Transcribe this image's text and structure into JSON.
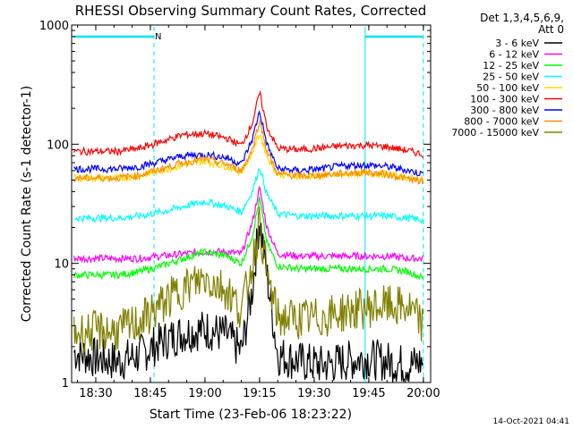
{
  "chart_data": {
    "type": "line",
    "title": "RHESSI Observing Summary Count Rates, Corrected",
    "xlabel": "Start Time (23-Feb-06 18:23:22)",
    "ylabel": "Corrected Count Rate (s-1 detector-1)",
    "y_scale": "log",
    "ylim": [
      1,
      1000
    ],
    "xlim": [
      "18:23:22",
      "20:02:00"
    ],
    "x_ticks": [
      "18:30",
      "18:45",
      "19:00",
      "19:15",
      "19:30",
      "19:45",
      "20:00"
    ],
    "y_ticks": [
      "1",
      "10",
      "100",
      "1000"
    ],
    "legend_header": [
      "Det 1,3,4,5,6,9,",
      "Att 0"
    ],
    "legend_position": "right",
    "footer_timestamp": "14-Oct-2021 04:41",
    "annotations": [
      {
        "text": "N",
        "time": "18:45",
        "note": "night marker"
      }
    ],
    "night_intervals": [
      [
        "18:23:22",
        "18:46:00"
      ],
      [
        "19:44:00",
        "20:00:00"
      ]
    ],
    "x": [
      "18:24",
      "18:30",
      "18:36",
      "18:42",
      "18:48",
      "18:54",
      "19:00",
      "19:06",
      "19:10",
      "19:13",
      "19:15",
      "19:17",
      "19:20",
      "19:26",
      "19:32",
      "19:38",
      "19:44",
      "19:50",
      "19:56",
      "20:00"
    ],
    "series": [
      {
        "name": "3 - 6 keV",
        "color": "#000000",
        "values": [
          1.8,
          1.6,
          1.5,
          1.7,
          2.2,
          2.6,
          2.8,
          2.5,
          1.8,
          6,
          24,
          8,
          1.7,
          1.5,
          1.4,
          1.5,
          1.6,
          1.5,
          1.4,
          1.5
        ]
      },
      {
        "name": "6 - 12 keV",
        "color": "#ff00ff",
        "values": [
          11,
          11,
          11,
          11,
          11.5,
          12,
          12.5,
          12.5,
          12,
          22,
          43,
          20,
          12,
          11.5,
          11.5,
          11.5,
          11.5,
          11.5,
          11,
          11
        ]
      },
      {
        "name": "12 - 25 keV",
        "color": "#00ff00",
        "values": [
          8,
          8,
          8,
          8.5,
          9.5,
          11,
          12.5,
          11.5,
          10,
          17,
          35,
          15,
          9.5,
          9,
          9,
          9,
          9,
          9,
          8.5,
          7.5
        ]
      },
      {
        "name": "25 - 50 keV",
        "color": "#00ffff",
        "values": [
          24,
          24,
          24,
          25,
          27,
          30,
          33,
          30,
          27,
          40,
          65,
          38,
          26,
          25,
          25,
          25,
          25,
          25,
          24,
          23
        ]
      },
      {
        "name": "50 - 100 keV",
        "color": "#ffd700",
        "values": [
          52,
          52,
          52,
          54,
          60,
          67,
          72,
          65,
          58,
          85,
          125,
          80,
          56,
          54,
          54,
          56,
          57,
          56,
          52,
          50
        ]
      },
      {
        "name": "100 - 300 keV",
        "color": "#ff0000",
        "values": [
          87,
          87,
          87,
          92,
          105,
          120,
          123,
          112,
          98,
          150,
          270,
          140,
          92,
          90,
          93,
          97,
          98,
          95,
          88,
          82
        ]
      },
      {
        "name": "300 - 800 keV",
        "color": "#0000ff",
        "values": [
          62,
          62,
          62,
          65,
          72,
          80,
          82,
          77,
          68,
          110,
          190,
          100,
          62,
          60,
          62,
          66,
          67,
          65,
          60,
          56
        ]
      },
      {
        "name": "800 - 7000 keV",
        "color": "#ff8c00",
        "values": [
          52,
          52,
          52,
          55,
          62,
          70,
          75,
          68,
          60,
          90,
          160,
          88,
          56,
          54,
          55,
          57,
          58,
          56,
          51,
          48
        ]
      },
      {
        "name": "7000 - 15000 keV",
        "color": "#808000",
        "values": [
          2.6,
          2.7,
          2.7,
          3.2,
          4.5,
          6.2,
          7.5,
          6.0,
          4.0,
          10,
          22,
          8,
          3.5,
          3.4,
          3.5,
          3.9,
          4.2,
          4.4,
          4.2,
          3.0
        ]
      }
    ]
  }
}
